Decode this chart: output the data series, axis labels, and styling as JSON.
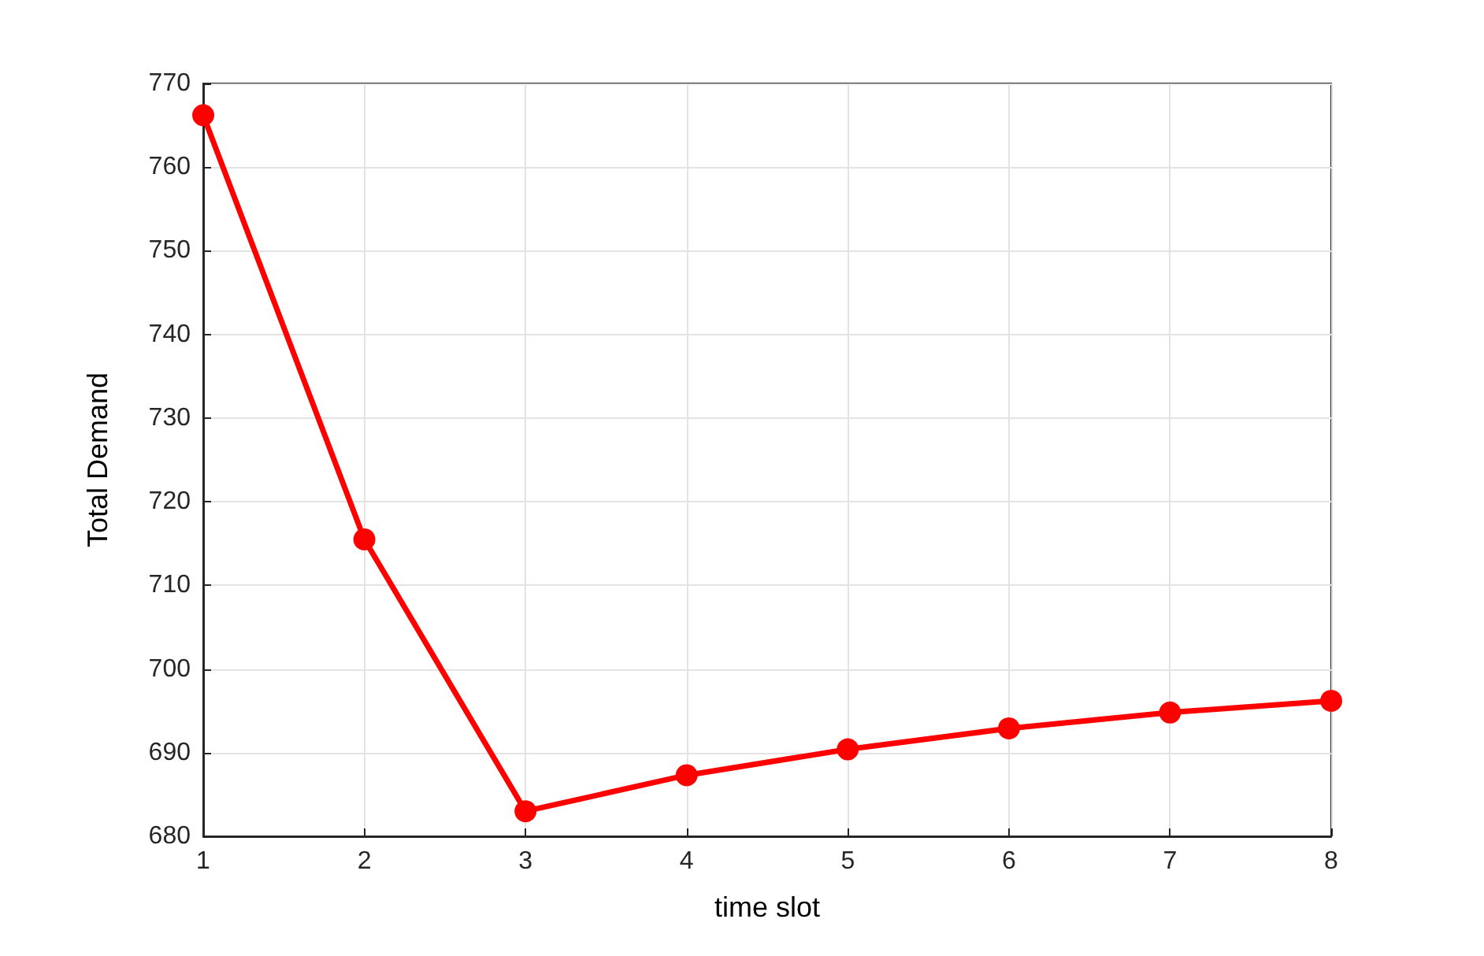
{
  "chart_data": {
    "type": "line",
    "xlabel": "time slot",
    "ylabel": "Total Demand",
    "x": [
      1,
      2,
      3,
      4,
      5,
      6,
      7,
      8
    ],
    "series": [
      {
        "color": "#ff0000",
        "values": [
          766.2,
          715.5,
          683,
          687.3,
          690.4,
          692.9,
          694.8,
          696.2
        ]
      }
    ],
    "xlim": [
      1,
      8
    ],
    "xticks": [
      1,
      2,
      3,
      4,
      5,
      6,
      7,
      8
    ],
    "ylim": [
      680,
      770
    ],
    "yticks": [
      680,
      690,
      700,
      710,
      720,
      730,
      740,
      750,
      760,
      770
    ],
    "grid": true,
    "marker": "circle",
    "line_style": "solid"
  }
}
